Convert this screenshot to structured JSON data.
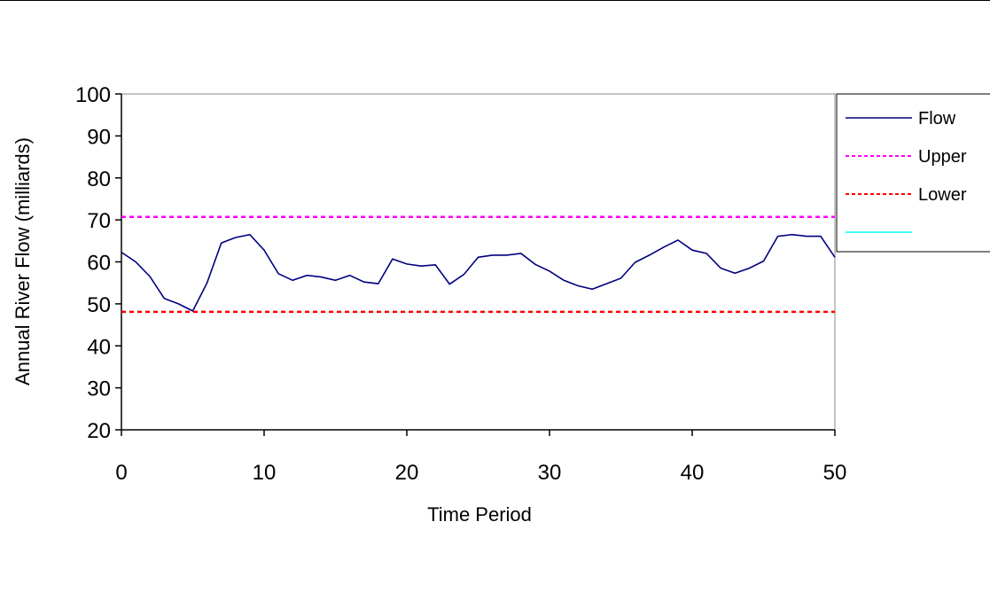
{
  "chart_data": {
    "type": "line",
    "title": "",
    "xlabel": "Time Period",
    "ylabel": "Annual River Flow (milliards)",
    "xlim": [
      0,
      50
    ],
    "ylim": [
      20,
      100
    ],
    "x_ticks": [
      0,
      10,
      20,
      30,
      40,
      50
    ],
    "y_ticks": [
      20,
      30,
      40,
      50,
      60,
      70,
      80,
      90,
      100
    ],
    "x_tick_labels": [
      "0",
      "10",
      "20",
      "30",
      "40",
      "50"
    ],
    "y_tick_labels": [
      "20",
      "30",
      "40",
      "50",
      "60",
      "70",
      "80",
      "90",
      "100"
    ],
    "grid": false,
    "legend_position": "right",
    "series": [
      {
        "name": "Flow",
        "color": "#000080",
        "style": "solid",
        "x": [
          0,
          1,
          2,
          3,
          4,
          5,
          6,
          7,
          8,
          9,
          10,
          11,
          12,
          13,
          14,
          15,
          16,
          17,
          18,
          19,
          20,
          21,
          22,
          23,
          24,
          25,
          26,
          27,
          28,
          29,
          30,
          31,
          32,
          33,
          34,
          35,
          36,
          37,
          38,
          39,
          40,
          41,
          42,
          43,
          44,
          45,
          46,
          47,
          48,
          49,
          50
        ],
        "values": [
          62.3,
          60.0,
          56.5,
          51.3,
          50.0,
          48.3,
          55.0,
          64.5,
          65.8,
          66.5,
          62.8,
          57.2,
          55.6,
          56.8,
          56.4,
          55.6,
          56.8,
          55.2,
          54.8,
          60.7,
          59.5,
          59.0,
          59.3,
          54.7,
          57.0,
          61.1,
          61.6,
          61.6,
          62.0,
          59.4,
          57.8,
          55.6,
          54.3,
          53.5,
          54.8,
          56.1,
          59.9,
          61.6,
          63.5,
          65.2,
          62.8,
          62.0,
          58.5,
          57.3,
          58.5,
          60.2,
          66.1,
          66.5,
          66.1,
          66.1,
          61.1
        ]
      },
      {
        "name": "Upper",
        "color": "#ff00ff",
        "style": "dashed",
        "x": [
          0,
          50
        ],
        "values": [
          70.7,
          70.7
        ]
      },
      {
        "name": "Lower",
        "color": "#ff0000",
        "style": "dashed",
        "x": [
          0,
          50
        ],
        "values": [
          48.1,
          48.1
        ]
      },
      {
        "color": "#00ffff",
        "style": "solid",
        "x": [],
        "values": []
      }
    ]
  }
}
